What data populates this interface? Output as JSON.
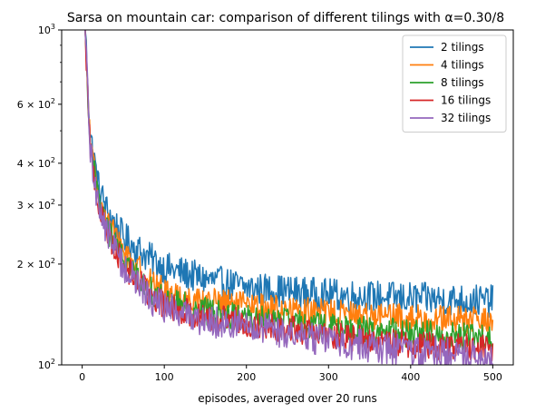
{
  "chart_data": {
    "type": "line",
    "title": "Sarsa on mountain car: comparison of different tilings with α=0.30/8",
    "xlabel": "episodes, averaged over 20 runs",
    "ylabel": "",
    "x_range": [
      1,
      500
    ],
    "xlim": [
      -25,
      525
    ],
    "ylim": [
      100,
      1000
    ],
    "y_scale": "log",
    "x_ticks": [
      0,
      100,
      200,
      300,
      400,
      500
    ],
    "x_tick_labels": [
      "0",
      "100",
      "200",
      "300",
      "400",
      "500"
    ],
    "y_ticks": [
      {
        "value": 100,
        "base": "10",
        "exp": "2"
      },
      {
        "value": 200,
        "base": "2 × 10",
        "exp": "2"
      },
      {
        "value": 300,
        "base": "3 × 10",
        "exp": "2"
      },
      {
        "value": 400,
        "base": "4 × 10",
        "exp": "2"
      },
      {
        "value": 600,
        "base": "6 × 10",
        "exp": "2"
      },
      {
        "value": 1000,
        "base": "10",
        "exp": "3"
      }
    ],
    "y_minor_ticks": [
      500,
      700,
      800,
      900
    ],
    "grid": false,
    "legend_position": "top-right",
    "series": [
      {
        "name": "2 tilings",
        "color": "#1f77b4",
        "knots": [
          [
            1,
            1400
          ],
          [
            10,
            480
          ],
          [
            20,
            340
          ],
          [
            30,
            290
          ],
          [
            50,
            240
          ],
          [
            80,
            210
          ],
          [
            100,
            195
          ],
          [
            150,
            180
          ],
          [
            200,
            170
          ],
          [
            300,
            162
          ],
          [
            400,
            158
          ],
          [
            500,
            155
          ]
        ],
        "noise": 0.07
      },
      {
        "name": "4 tilings",
        "color": "#ff7f0e",
        "knots": [
          [
            1,
            1400
          ],
          [
            10,
            450
          ],
          [
            20,
            320
          ],
          [
            30,
            270
          ],
          [
            50,
            220
          ],
          [
            80,
            180
          ],
          [
            100,
            165
          ],
          [
            150,
            155
          ],
          [
            200,
            150
          ],
          [
            300,
            143
          ],
          [
            400,
            138
          ],
          [
            500,
            135
          ]
        ],
        "noise": 0.06
      },
      {
        "name": "8 tilings",
        "color": "#2ca02c",
        "knots": [
          [
            1,
            1400
          ],
          [
            10,
            440
          ],
          [
            20,
            310
          ],
          [
            30,
            255
          ],
          [
            50,
            205
          ],
          [
            80,
            170
          ],
          [
            100,
            155
          ],
          [
            150,
            145
          ],
          [
            200,
            138
          ],
          [
            300,
            130
          ],
          [
            400,
            124
          ],
          [
            500,
            120
          ]
        ],
        "noise": 0.06
      },
      {
        "name": "16 tilings",
        "color": "#d62728",
        "knots": [
          [
            1,
            1400
          ],
          [
            10,
            430
          ],
          [
            20,
            300
          ],
          [
            30,
            250
          ],
          [
            50,
            200
          ],
          [
            80,
            165
          ],
          [
            100,
            150
          ],
          [
            150,
            140
          ],
          [
            200,
            134
          ],
          [
            300,
            122
          ],
          [
            400,
            115
          ],
          [
            500,
            112
          ]
        ],
        "noise": 0.06
      },
      {
        "name": "32 tilings",
        "color": "#9467bd",
        "knots": [
          [
            1,
            1400
          ],
          [
            10,
            430
          ],
          [
            20,
            300
          ],
          [
            30,
            250
          ],
          [
            50,
            198
          ],
          [
            80,
            160
          ],
          [
            100,
            148
          ],
          [
            150,
            136
          ],
          [
            200,
            130
          ],
          [
            300,
            118
          ],
          [
            400,
            110
          ],
          [
            500,
            107
          ]
        ],
        "noise": 0.07
      }
    ]
  }
}
